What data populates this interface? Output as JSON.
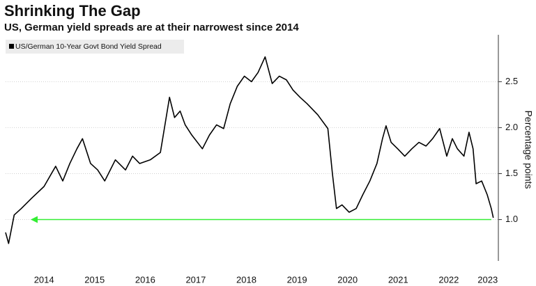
{
  "chart_data": {
    "type": "line",
    "title": "Shrinking The Gap",
    "subtitle": "US, German yield spreads are at their narrowest since 2014",
    "y_axis_label": "Percentage points",
    "series": [
      {
        "name": "US/German 10-Year Govt Bond Yield Spread",
        "color": "#000000",
        "x": [
          2013.74,
          2013.8,
          2013.91,
          2014.05,
          2014.25,
          2014.5,
          2014.73,
          2014.87,
          2015.01,
          2015.15,
          2015.26,
          2015.42,
          2015.56,
          2015.7,
          2015.91,
          2016.11,
          2016.25,
          2016.39,
          2016.6,
          2016.8,
          2016.89,
          2016.98,
          2017.08,
          2017.19,
          2017.29,
          2017.42,
          2017.63,
          2017.77,
          2017.91,
          2018.05,
          2018.18,
          2018.32,
          2018.46,
          2018.6,
          2018.73,
          2018.87,
          2019.01,
          2019.15,
          2019.29,
          2019.42,
          2019.56,
          2019.7,
          2019.91,
          2020.11,
          2020.2,
          2020.28,
          2020.39,
          2020.53,
          2020.67,
          2020.8,
          2020.94,
          2021.08,
          2021.19,
          2021.26,
          2021.36,
          2021.49,
          2021.63,
          2021.77,
          2021.91,
          2022.05,
          2022.18,
          2022.32,
          2022.46,
          2022.57,
          2022.67,
          2022.8,
          2022.9,
          2022.98,
          2023.04,
          2023.15,
          2023.26,
          2023.34,
          2023.38
        ],
        "values": [
          0.86,
          0.74,
          1.05,
          1.12,
          1.23,
          1.36,
          1.58,
          1.42,
          1.61,
          1.77,
          1.88,
          1.61,
          1.54,
          1.42,
          1.65,
          1.54,
          1.69,
          1.61,
          1.65,
          1.73,
          2.03,
          2.33,
          2.11,
          2.18,
          2.03,
          1.92,
          1.77,
          1.92,
          2.03,
          1.99,
          2.26,
          2.45,
          2.56,
          2.5,
          2.6,
          2.77,
          2.48,
          2.56,
          2.52,
          2.41,
          2.33,
          2.26,
          2.14,
          1.99,
          1.5,
          1.12,
          1.16,
          1.08,
          1.12,
          1.27,
          1.42,
          1.61,
          1.88,
          2.02,
          1.84,
          1.77,
          1.69,
          1.77,
          1.84,
          1.8,
          1.88,
          1.99,
          1.69,
          1.88,
          1.77,
          1.69,
          1.95,
          1.77,
          1.39,
          1.42,
          1.27,
          1.12,
          1.02
        ]
      }
    ],
    "reference_line": {
      "value": 1.0,
      "color": "#33ee33"
    },
    "xlim": [
      2013.74,
      2023.48
    ],
    "ylim": [
      0.55,
      3.01
    ],
    "xticks": [
      {
        "value": 2014.5,
        "label": "2014"
      },
      {
        "value": 2015.5,
        "label": "2015"
      },
      {
        "value": 2016.5,
        "label": "2016"
      },
      {
        "value": 2017.5,
        "label": "2017"
      },
      {
        "value": 2018.5,
        "label": "2018"
      },
      {
        "value": 2019.5,
        "label": "2019"
      },
      {
        "value": 2020.5,
        "label": "2020"
      },
      {
        "value": 2021.5,
        "label": "2021"
      },
      {
        "value": 2022.5,
        "label": "2022"
      },
      {
        "value": 2023.27,
        "label": "2023"
      }
    ],
    "yticks": [
      {
        "value": 1.0,
        "label": "1.0"
      },
      1.5,
      {
        "value": 2.0,
        "label": "2.0"
      },
      2.5
    ],
    "grid": true
  }
}
